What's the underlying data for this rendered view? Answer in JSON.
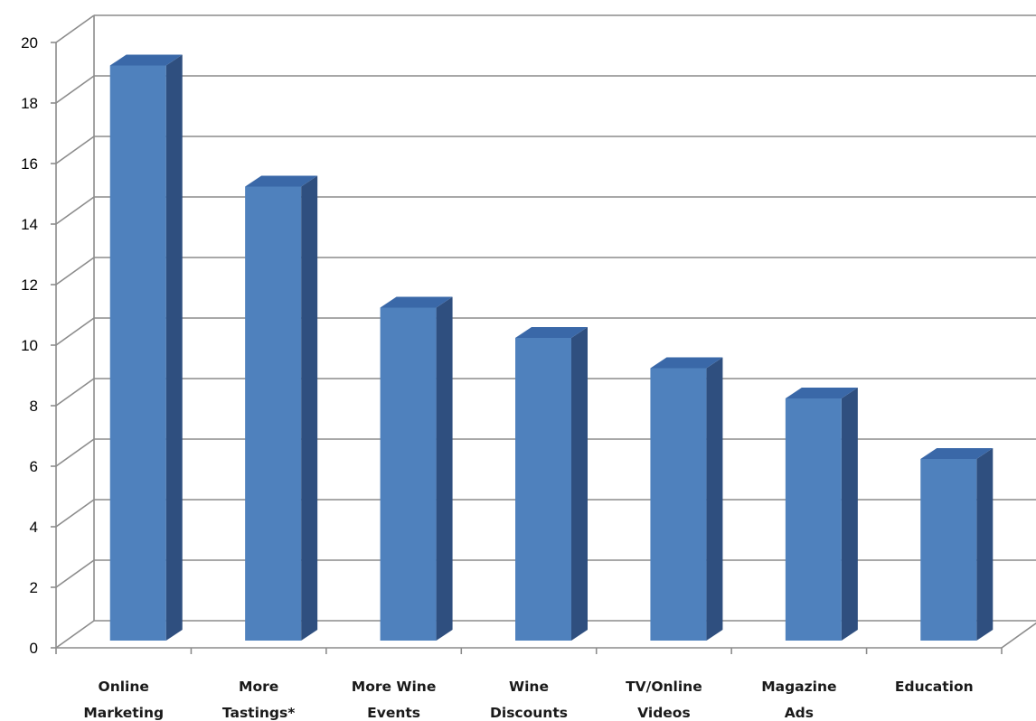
{
  "chart_data": {
    "type": "bar",
    "categories": [
      [
        "Online",
        "Marketing"
      ],
      [
        "More",
        "Tastings*"
      ],
      [
        "More Wine",
        "Events"
      ],
      [
        "Wine",
        "Discounts"
      ],
      [
        "TV/Online",
        "Videos"
      ],
      [
        "Magazine",
        "Ads"
      ],
      [
        "Education"
      ]
    ],
    "values": [
      19,
      15,
      11,
      10,
      9,
      8,
      6
    ],
    "ylim": [
      0,
      20
    ],
    "yticks": [
      "0",
      "2",
      "4",
      "6",
      "8",
      "10",
      "12",
      "14",
      "16",
      "18",
      "20"
    ],
    "title": "",
    "xlabel": "",
    "ylabel": "",
    "grid": true,
    "legend": "none",
    "bar_3d": true,
    "colors": {
      "bar_front": "#4f81bd",
      "bar_side": "#2f4f7f",
      "bar_top": "#3a68a8",
      "gridline": "#8c8c8c",
      "axis_text": "#000000"
    }
  }
}
